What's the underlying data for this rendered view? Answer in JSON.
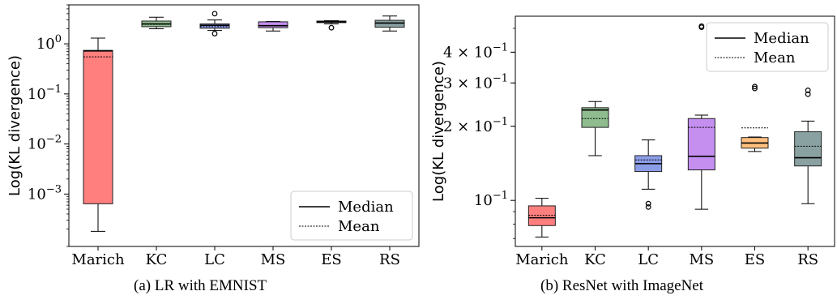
{
  "captions": {
    "a": "(a) LR with EMNIST",
    "b": "(b) ResNet with ImageNet"
  },
  "legend": {
    "median": "Median",
    "mean": "Mean"
  },
  "chart_data": [
    {
      "type": "boxplot",
      "panel": "a",
      "ylabel": "Log(KL divergence)",
      "yscale": "log",
      "ylim": [
        9e-05,
        6
      ],
      "yticks": [
        {
          "value": 1,
          "label": "10^0"
        },
        {
          "value": 0.1,
          "label": "10^-1"
        },
        {
          "value": 0.01,
          "label": "10^-2"
        },
        {
          "value": 0.001,
          "label": "10^-3"
        }
      ],
      "grid": false,
      "legend_position": "lower-right",
      "categories": [
        "Marich",
        "KC",
        "LC",
        "MS",
        "ES",
        "RS"
      ],
      "colors": [
        "#ff7f7f",
        "#8fbc8f",
        "#8c9de8",
        "#c58ff0",
        "#ffbf7f",
        "#8aa1a1"
      ],
      "boxes": [
        {
          "whislo": 0.00018,
          "q1": 0.00064,
          "med": 0.72,
          "q3": 0.74,
          "whishi": 1.3,
          "mean": 0.55,
          "fliers": []
        },
        {
          "whislo": 2.0,
          "q1": 2.2,
          "med": 2.5,
          "q3": 2.85,
          "whishi": 3.4,
          "mean": 2.45,
          "fliers": []
        },
        {
          "whislo": 1.85,
          "q1": 2.05,
          "med": 2.35,
          "q3": 2.5,
          "whishi": 3.0,
          "mean": 2.2,
          "fliers": [
            1.6,
            4.0
          ]
        },
        {
          "whislo": 1.8,
          "q1": 2.1,
          "med": 2.3,
          "q3": 2.75,
          "whishi": 2.8,
          "mean": 2.3,
          "fliers": []
        },
        {
          "whislo": 2.5,
          "q1": 2.65,
          "med": 2.75,
          "q3": 2.85,
          "whishi": 2.9,
          "mean": 2.7,
          "fliers": [
            2.1
          ]
        },
        {
          "whislo": 1.8,
          "q1": 2.15,
          "med": 2.6,
          "q3": 2.95,
          "whishi": 3.6,
          "mean": 2.6,
          "fliers": []
        }
      ]
    },
    {
      "type": "boxplot",
      "panel": "b",
      "ylabel": "Log(KL divergence)",
      "yscale": "log",
      "ylim": [
        0.065,
        0.56
      ],
      "yticks": [
        {
          "value": 0.4,
          "label": "4 × 10^-1"
        },
        {
          "value": 0.3,
          "label": "3 × 10^-1"
        },
        {
          "value": 0.2,
          "label": "2 × 10^-1"
        },
        {
          "value": 0.1,
          "label": "10^-1"
        }
      ],
      "grid": false,
      "legend_position": "upper-right",
      "categories": [
        "Marich",
        "KC",
        "LC",
        "MS",
        "ES",
        "RS"
      ],
      "colors": [
        "#ff7f7f",
        "#8fbc8f",
        "#8c9de8",
        "#c58ff0",
        "#ffbf7f",
        "#8aa1a1"
      ],
      "boxes": [
        {
          "whislo": 0.071,
          "q1": 0.079,
          "med": 0.085,
          "q3": 0.095,
          "whishi": 0.102,
          "mean": 0.087,
          "fliers": []
        },
        {
          "whislo": 0.152,
          "q1": 0.198,
          "med": 0.233,
          "q3": 0.238,
          "whishi": 0.252,
          "mean": 0.215,
          "fliers": []
        },
        {
          "whislo": 0.111,
          "q1": 0.131,
          "med": 0.141,
          "q3": 0.152,
          "whishi": 0.176,
          "mean": 0.146,
          "fliers": [
            0.094,
            0.097
          ]
        },
        {
          "whislo": 0.092,
          "q1": 0.133,
          "med": 0.151,
          "q3": 0.215,
          "whishi": 0.222,
          "mean": 0.198,
          "fliers": [
            0.505,
            0.51
          ]
        },
        {
          "whislo": 0.158,
          "q1": 0.163,
          "med": 0.171,
          "q3": 0.18,
          "whishi": 0.181,
          "mean": 0.197,
          "fliers": [
            0.285,
            0.29
          ]
        },
        {
          "whislo": 0.097,
          "q1": 0.138,
          "med": 0.149,
          "q3": 0.19,
          "whishi": 0.21,
          "mean": 0.166,
          "fliers": [
            0.27,
            0.28
          ]
        }
      ]
    }
  ]
}
